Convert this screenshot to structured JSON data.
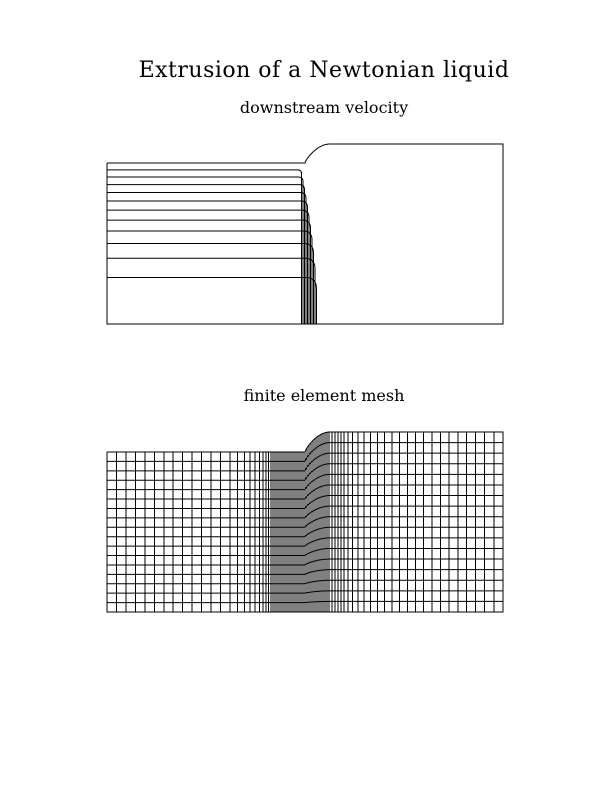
{
  "page": {
    "title": "Extrusion of a Newtonian liquid"
  },
  "velocity_plot": {
    "title": "downstream velocity",
    "contour_levels": 11,
    "line_color": "#000000"
  },
  "mesh_plot": {
    "title": "finite element mesh",
    "inlet_columns": 13,
    "transition_columns": 14,
    "outlet_columns": 20,
    "rows": 17,
    "line_color": "#000000"
  }
}
